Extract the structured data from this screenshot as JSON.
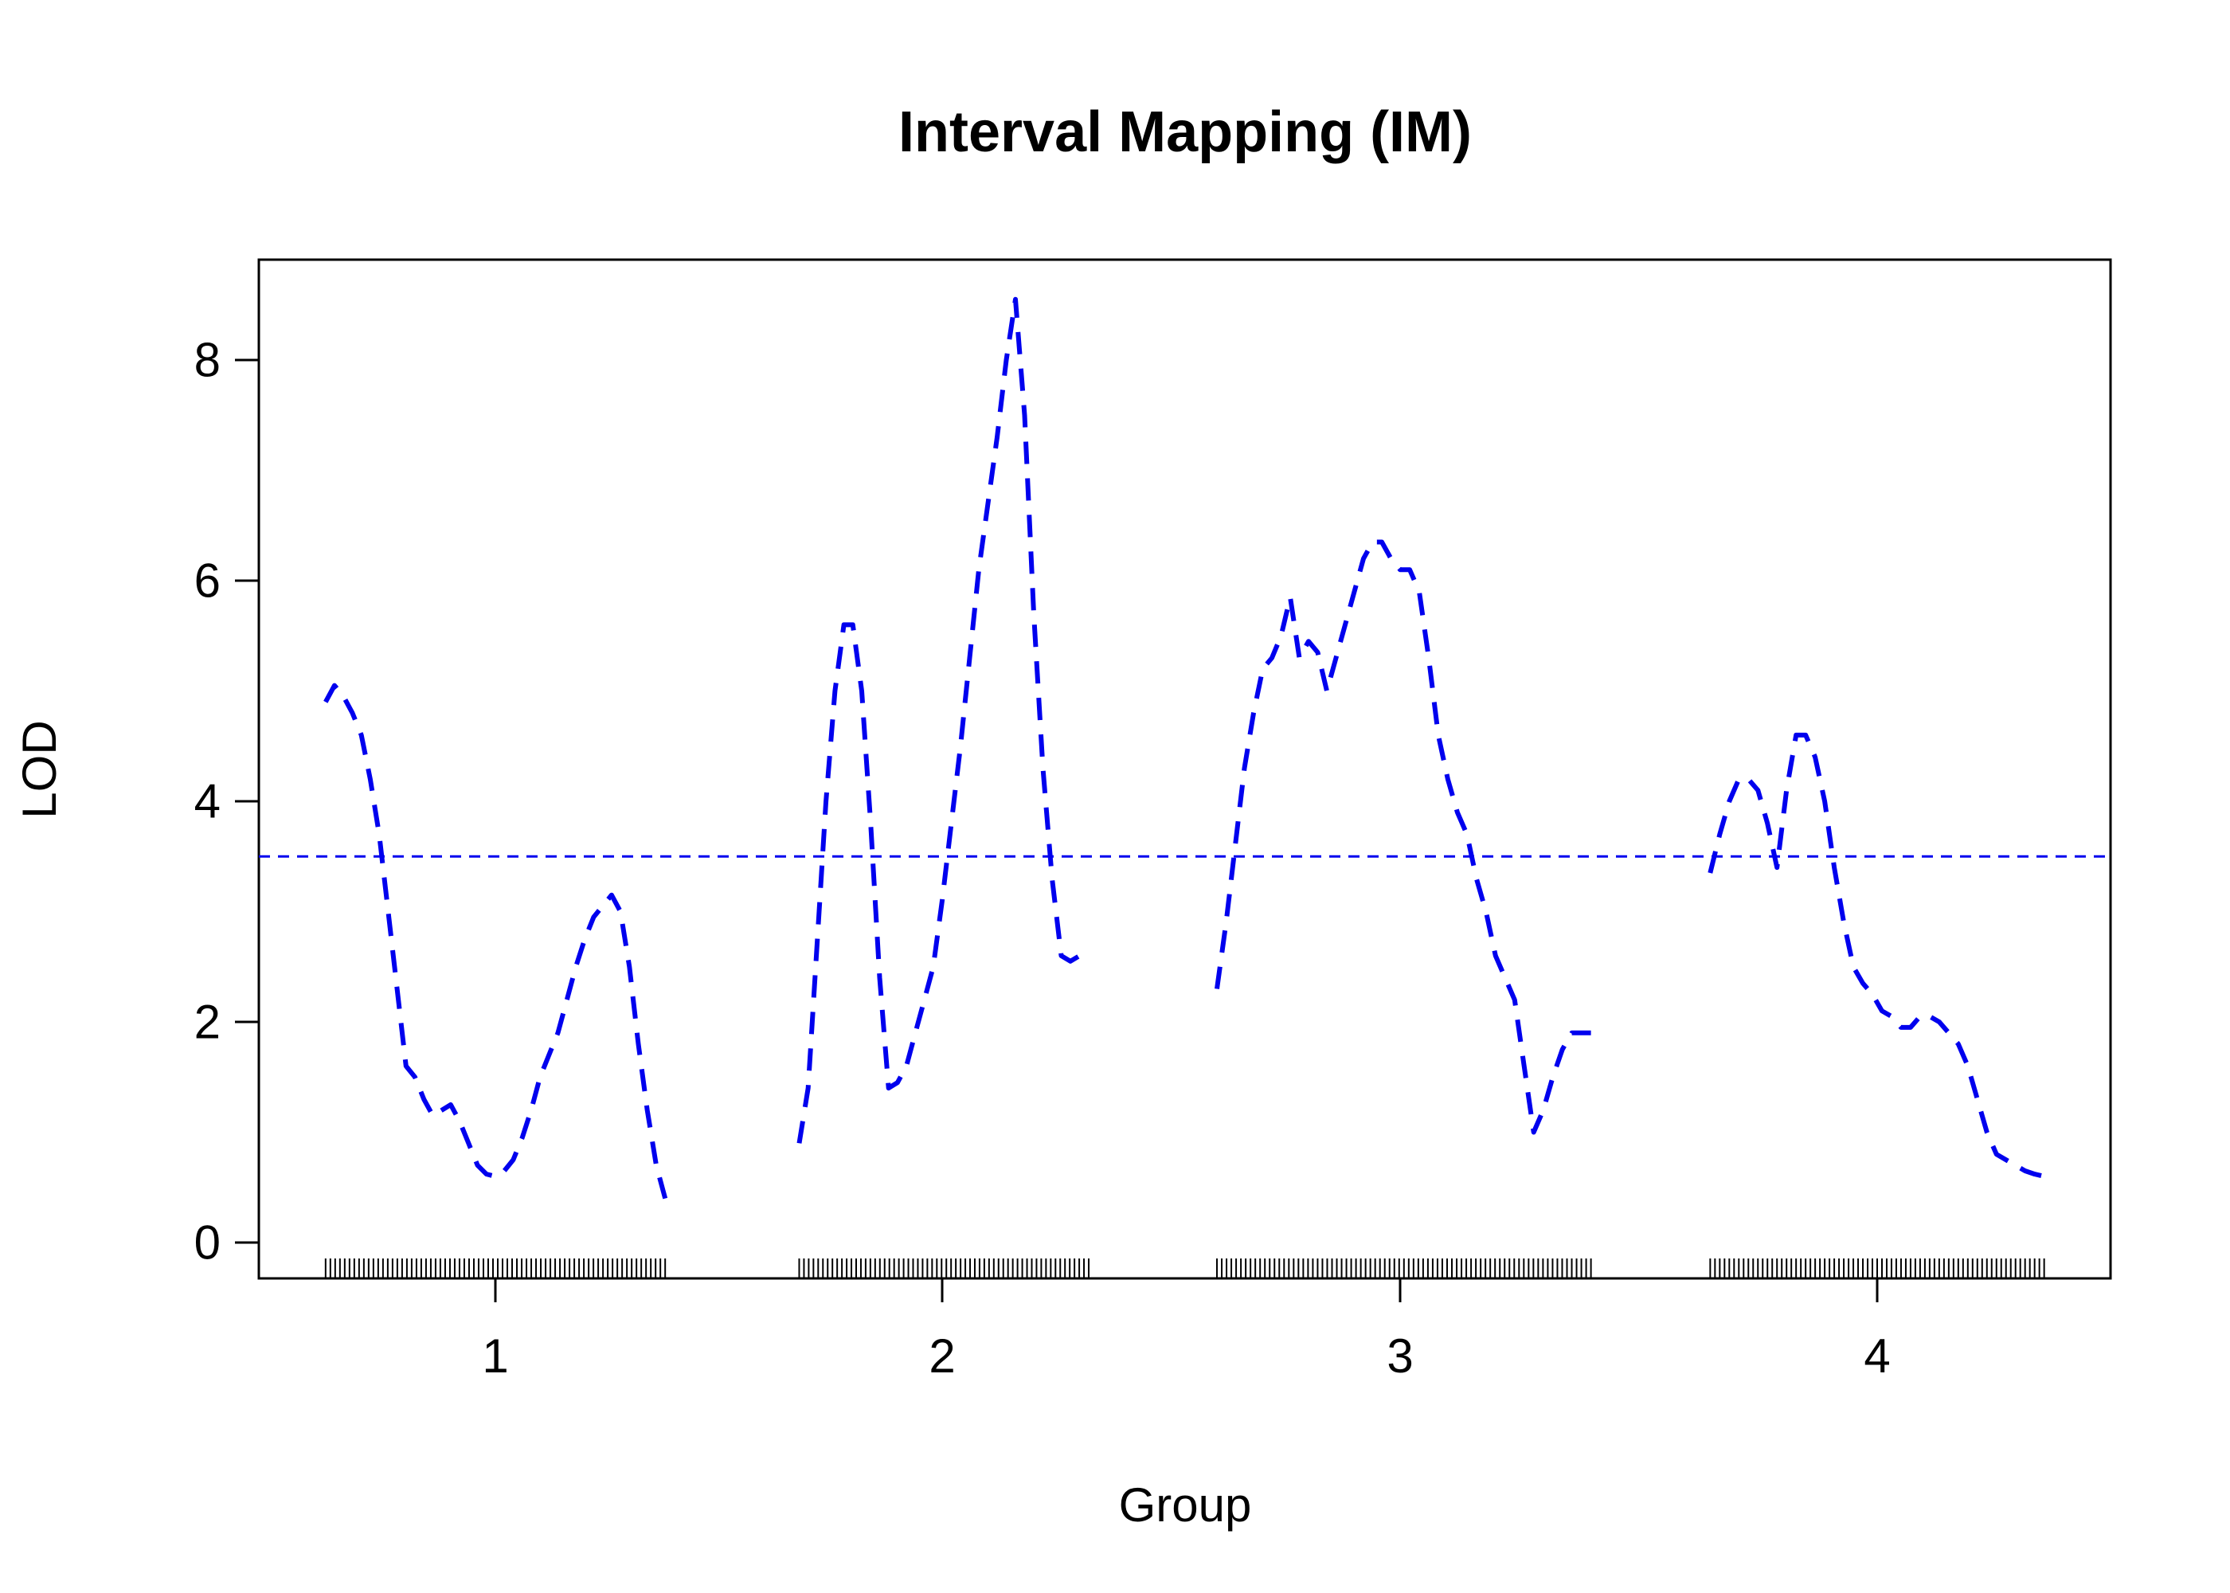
{
  "chart_data": {
    "type": "line",
    "title": "Interval Mapping (IM)",
    "xlabel": "Group",
    "ylabel": "LOD",
    "ylim": [
      -0.3,
      8.9
    ],
    "y_ticks": [
      "0",
      "2",
      "4",
      "6",
      "8"
    ],
    "x_ticks": [
      "1",
      "2",
      "3",
      "4"
    ],
    "threshold": 3.5,
    "colors": {
      "series": "#0000ee",
      "threshold": "#0000ee",
      "axis": "#000000",
      "rug": "#000000"
    },
    "line_style": "dashed",
    "groups": [
      {
        "label": "1",
        "x_range": [
          0.62,
          1.38
        ],
        "x": [
          0.62,
          0.64,
          0.66,
          0.68,
          0.7,
          0.72,
          0.74,
          0.76,
          0.78,
          0.8,
          0.82,
          0.84,
          0.86,
          0.88,
          0.9,
          0.92,
          0.94,
          0.96,
          0.98,
          1.0,
          1.02,
          1.04,
          1.06,
          1.08,
          1.1,
          1.12,
          1.14,
          1.16,
          1.18,
          1.2,
          1.22,
          1.24,
          1.26,
          1.28,
          1.3,
          1.32,
          1.34,
          1.36,
          1.38
        ],
        "y": [
          4.9,
          5.05,
          4.95,
          4.8,
          4.6,
          4.2,
          3.7,
          3.0,
          2.3,
          1.6,
          1.5,
          1.3,
          1.15,
          1.2,
          1.25,
          1.1,
          0.9,
          0.7,
          0.62,
          0.6,
          0.65,
          0.75,
          0.95,
          1.2,
          1.5,
          1.7,
          1.9,
          2.2,
          2.5,
          2.75,
          2.95,
          3.05,
          3.15,
          3.0,
          2.5,
          1.8,
          1.2,
          0.7,
          0.4
        ]
      },
      {
        "label": "2",
        "x_range": [
          1.68,
          2.32
        ],
        "x": [
          1.68,
          1.7,
          1.72,
          1.74,
          1.76,
          1.78,
          1.8,
          1.82,
          1.84,
          1.86,
          1.88,
          1.9,
          1.92,
          1.94,
          1.96,
          1.98,
          2.0,
          2.02,
          2.04,
          2.06,
          2.08,
          2.1,
          2.12,
          2.14,
          2.16,
          2.18,
          2.2,
          2.22,
          2.24,
          2.26,
          2.28,
          2.3,
          2.32
        ],
        "y": [
          0.9,
          1.4,
          2.7,
          4.0,
          5.0,
          5.6,
          5.6,
          5.0,
          3.8,
          2.4,
          1.4,
          1.45,
          1.6,
          1.9,
          2.2,
          2.5,
          3.1,
          3.8,
          4.5,
          5.3,
          6.1,
          6.7,
          7.3,
          8.0,
          8.55,
          7.5,
          5.7,
          4.3,
          3.3,
          2.6,
          2.55,
          2.6,
          2.6
        ]
      },
      {
        "label": "3",
        "x_range": [
          2.6,
          3.4
        ],
        "x": [
          2.6,
          2.62,
          2.64,
          2.66,
          2.68,
          2.7,
          2.72,
          2.74,
          2.76,
          2.78,
          2.8,
          2.82,
          2.84,
          2.86,
          2.88,
          2.9,
          2.92,
          2.94,
          2.96,
          2.98,
          3.0,
          3.02,
          3.04,
          3.06,
          3.08,
          3.1,
          3.12,
          3.14,
          3.16,
          3.18,
          3.2,
          3.22,
          3.24,
          3.26,
          3.28,
          3.3,
          3.32,
          3.34,
          3.36,
          3.38,
          3.4
        ],
        "y": [
          2.3,
          2.9,
          3.6,
          4.3,
          4.8,
          5.2,
          5.3,
          5.5,
          5.85,
          5.3,
          5.45,
          5.35,
          5.0,
          5.3,
          5.6,
          5.9,
          6.2,
          6.35,
          6.35,
          6.2,
          6.1,
          6.1,
          5.9,
          5.3,
          4.6,
          4.2,
          3.9,
          3.7,
          3.3,
          3.0,
          2.6,
          2.4,
          2.2,
          1.6,
          1.0,
          1.2,
          1.5,
          1.75,
          1.9,
          1.9,
          1.9
        ]
      },
      {
        "label": "4",
        "x_range": [
          3.65,
          4.35
        ],
        "x": [
          3.65,
          3.67,
          3.69,
          3.71,
          3.73,
          3.75,
          3.77,
          3.79,
          3.81,
          3.83,
          3.85,
          3.87,
          3.89,
          3.91,
          3.93,
          3.95,
          3.97,
          3.99,
          4.01,
          4.03,
          4.05,
          4.07,
          4.09,
          4.11,
          4.13,
          4.15,
          4.17,
          4.19,
          4.21,
          4.23,
          4.25,
          4.27,
          4.29,
          4.31,
          4.33,
          4.35
        ],
        "y": [
          3.35,
          3.7,
          4.0,
          4.2,
          4.2,
          4.1,
          3.8,
          3.4,
          4.1,
          4.6,
          4.6,
          4.4,
          4.0,
          3.4,
          2.9,
          2.5,
          2.35,
          2.25,
          2.1,
          2.05,
          1.95,
          1.95,
          2.05,
          2.05,
          2.0,
          1.9,
          1.8,
          1.6,
          1.3,
          1.0,
          0.8,
          0.75,
          0.7,
          0.65,
          0.62,
          0.6
        ]
      }
    ]
  }
}
